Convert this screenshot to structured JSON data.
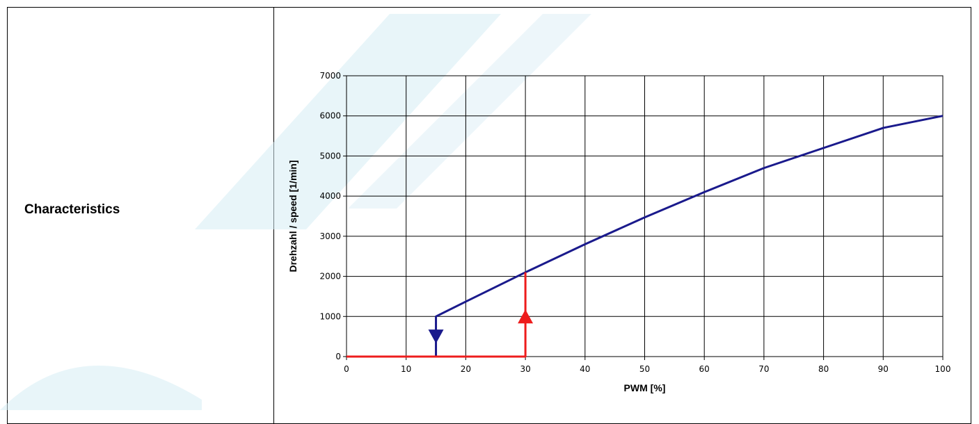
{
  "row": {
    "label": "Characteristics"
  },
  "chart_data": {
    "type": "line",
    "xlabel": "PWM [%]",
    "ylabel": "Drehzahl / speed [1/min]",
    "xlim": [
      0,
      100
    ],
    "ylim": [
      0,
      7000
    ],
    "xticks": [
      0,
      10,
      20,
      30,
      40,
      50,
      60,
      70,
      80,
      90,
      100
    ],
    "yticks": [
      0,
      1000,
      2000,
      3000,
      4000,
      5000,
      6000,
      7000
    ],
    "grid": true,
    "series": [
      {
        "color": "#1a1a8c",
        "points": [
          [
            15,
            0
          ],
          [
            15,
            1000
          ],
          [
            20,
            1370
          ],
          [
            30,
            2100
          ],
          [
            40,
            2800
          ],
          [
            50,
            3470
          ],
          [
            60,
            4100
          ],
          [
            70,
            4700
          ],
          [
            80,
            5200
          ],
          [
            90,
            5700
          ],
          [
            100,
            6000
          ]
        ]
      },
      {
        "color": "#ee1c1c",
        "points": [
          [
            0,
            0
          ],
          [
            30,
            0
          ],
          [
            30,
            2100
          ]
        ]
      }
    ],
    "arrows": [
      {
        "color": "#1a1a8c",
        "x": 15,
        "y": 500,
        "direction": "down"
      },
      {
        "color": "#ee1c1c",
        "x": 30,
        "y": 1000,
        "direction": "up"
      }
    ]
  },
  "colors": {
    "watermark": "#d6ecf4",
    "grid": "#000000"
  }
}
